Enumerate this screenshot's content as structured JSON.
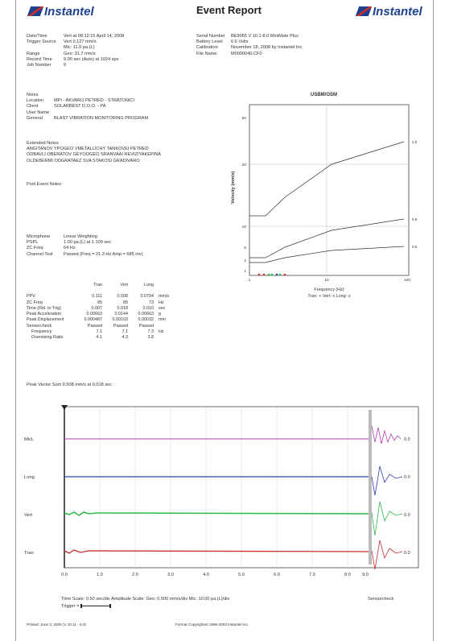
{
  "header": {
    "logo_left": "Instantel",
    "logo_right": "Instantel",
    "title": "Event Report"
  },
  "info_left": [
    {
      "label": "Date/Time",
      "value": "Vert at 08:12:15 April 14, 2008"
    },
    {
      "label": "Trigger Source",
      "value": "Vert 0.127 mm/s"
    },
    {
      "label": "",
      "value": "Mic: 11.0 pa.(L)"
    },
    {
      "label": "Range",
      "value": "Geo: 31.7 mm/s"
    },
    {
      "label": "Record Time",
      "value": "9.00 sec (Auto) at 1024 sps"
    },
    {
      "label": "Job Number",
      "value": "9"
    }
  ],
  "info_right": [
    {
      "label": "Serial Number",
      "value": "BE9055 V 10.1-8.0 MiniMate Plus"
    },
    {
      "label": "Battery Level",
      "value": "6.6 Volts"
    },
    {
      "label": "Calibration",
      "value": "November 18, 2008 by Instantel Inc."
    },
    {
      "label": "File Name",
      "value": "M0000040.CF0"
    }
  ],
  "notes": [
    {
      "label": "Notes",
      "value": ""
    },
    {
      "label": "Location",
      "value": "MPI - AKVARIJ PETRED - STRATONICI"
    },
    {
      "label": "Client",
      "value": "SOLARBEST D.O.O. - PA"
    },
    {
      "label": "User Name",
      "value": ""
    },
    {
      "label": "General",
      "value": "BLAST VIBRATION MONITORING PROGRAM"
    }
  ],
  "extended_notes": {
    "label": "Extended Notes",
    "lines": [
      "ANGITANOV YPOGEO VMETALLICHY TANKOVEI PETRED",
      "ODBAVLI OBERATOV GEYOOGEO SRANVAAI REVIZIYAKEPINA",
      "OLDEBERMI ODGRATAEZ SVA STAKOSI GRADIVARO"
    ]
  },
  "post_event_notes": "Post Event Notes",
  "microphone": [
    {
      "label": "Microphone",
      "value": "Linear Weighting"
    },
    {
      "label": "PSPL",
      "value": "1.00 pa.(L) at 1.109 sec"
    },
    {
      "label": "ZC Freq",
      "value": "64 Hz"
    },
    {
      "label": "Channel Test",
      "value": "Passed (Freq = 21.3 Hz Amp = 686 mv)"
    }
  ],
  "summary": {
    "headers": [
      "",
      "Tran",
      "Vert",
      "Long",
      ""
    ],
    "rows": [
      [
        "PPV",
        "0.111",
        "0.508",
        "0.0794",
        "mm/s"
      ],
      [
        "ZC Freq",
        "85",
        "85",
        "73",
        "Hz"
      ],
      [
        "Time (Rel. to Trig)",
        "0.007",
        "0.018",
        "0.010",
        "sec"
      ],
      [
        "Peak Acceleration",
        "0.00663",
        "0.0144",
        "0.00663",
        "g"
      ],
      [
        "Peak Displacement",
        "0.000487",
        "0.00103",
        "0.00032",
        "mm"
      ],
      [
        "Sensorcheck",
        "Passed",
        "Passed",
        "Passed",
        ""
      ],
      [
        "Frequency",
        "7.1",
        "7.1",
        "7.3",
        "Hz"
      ],
      [
        "Overswing Ratio",
        "4.1",
        "4.3",
        "3.8",
        ""
      ]
    ]
  },
  "peak_vector_sum": "Peak Vector Sum 0.508 mm/s at 0.018 sec",
  "usbm_chart": {
    "title": "USBM/OSM",
    "ylabel": "Velocity (mm/s)",
    "xlabel": "Frequency (Hz)",
    "legend": "Tran: +  Vert: x  Long: o",
    "y_ticks": [
      "50",
      "20",
      "10",
      "5",
      "2",
      "1"
    ],
    "x_ticks": [
      "1",
      "10",
      "100"
    ],
    "curve_labels": [
      "2.0",
      "0.8",
      "0.5"
    ]
  },
  "waveform": {
    "channels": [
      {
        "name": "MicL",
        "color": "#b03cb0"
      },
      {
        "name": "Long",
        "color": "#2f3fb6"
      },
      {
        "name": "Vert",
        "color": "#2fb84a"
      },
      {
        "name": "Tran",
        "color": "#c83030"
      }
    ],
    "right_values": [
      "0.0",
      "0.0",
      "0.0",
      "0.0"
    ],
    "x_ticks": [
      "0.0",
      "1.0",
      "2.0",
      "3.0",
      "4.0",
      "5.0",
      "6.0",
      "7.0",
      "8.0",
      "9.0"
    ],
    "time_scale": "Time Scale: 0.50 sec/div  Amplitude Scale: Geo: 0.500 mm/s/div Mic: 10.00 pa.(L)/div",
    "trigger": "Trigger =",
    "sensorcheck": "Sensorcheck"
  },
  "footer": {
    "left": "Printed: June 3, 2008 (V 10.11 - 8.0)",
    "center": "Format Copyrighted 1996-2003 Instantel Inc."
  }
}
